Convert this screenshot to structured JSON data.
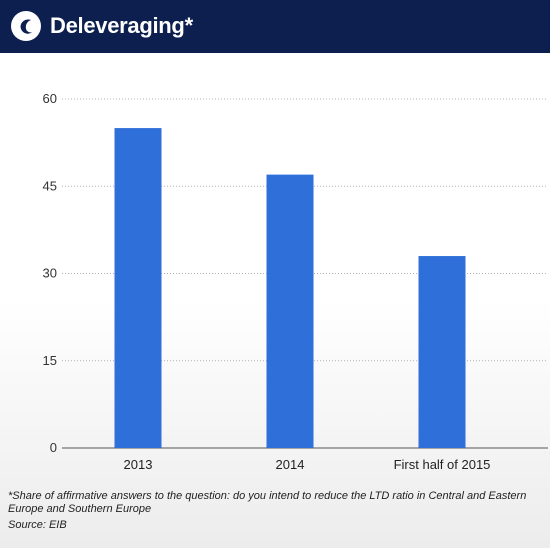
{
  "header": {
    "title": "Deleveraging*",
    "logo_icon": "statista-logo-icon",
    "background": "#0c1f4e"
  },
  "chart_data": {
    "type": "bar",
    "categories": [
      "2013",
      "2014",
      "First half of 2015"
    ],
    "values": [
      55,
      47,
      33
    ],
    "ylim": [
      0,
      60
    ],
    "yticks": [
      0,
      15,
      30,
      45,
      60
    ],
    "grid": true,
    "legend": "none",
    "bar_color": "#2f6fd9"
  },
  "footnote": "*Share of affirmative answers to the question: do you intend to reduce the LTD ratio in Central and Eastern Europe and Southern Europe",
  "source": "Source: EIB"
}
